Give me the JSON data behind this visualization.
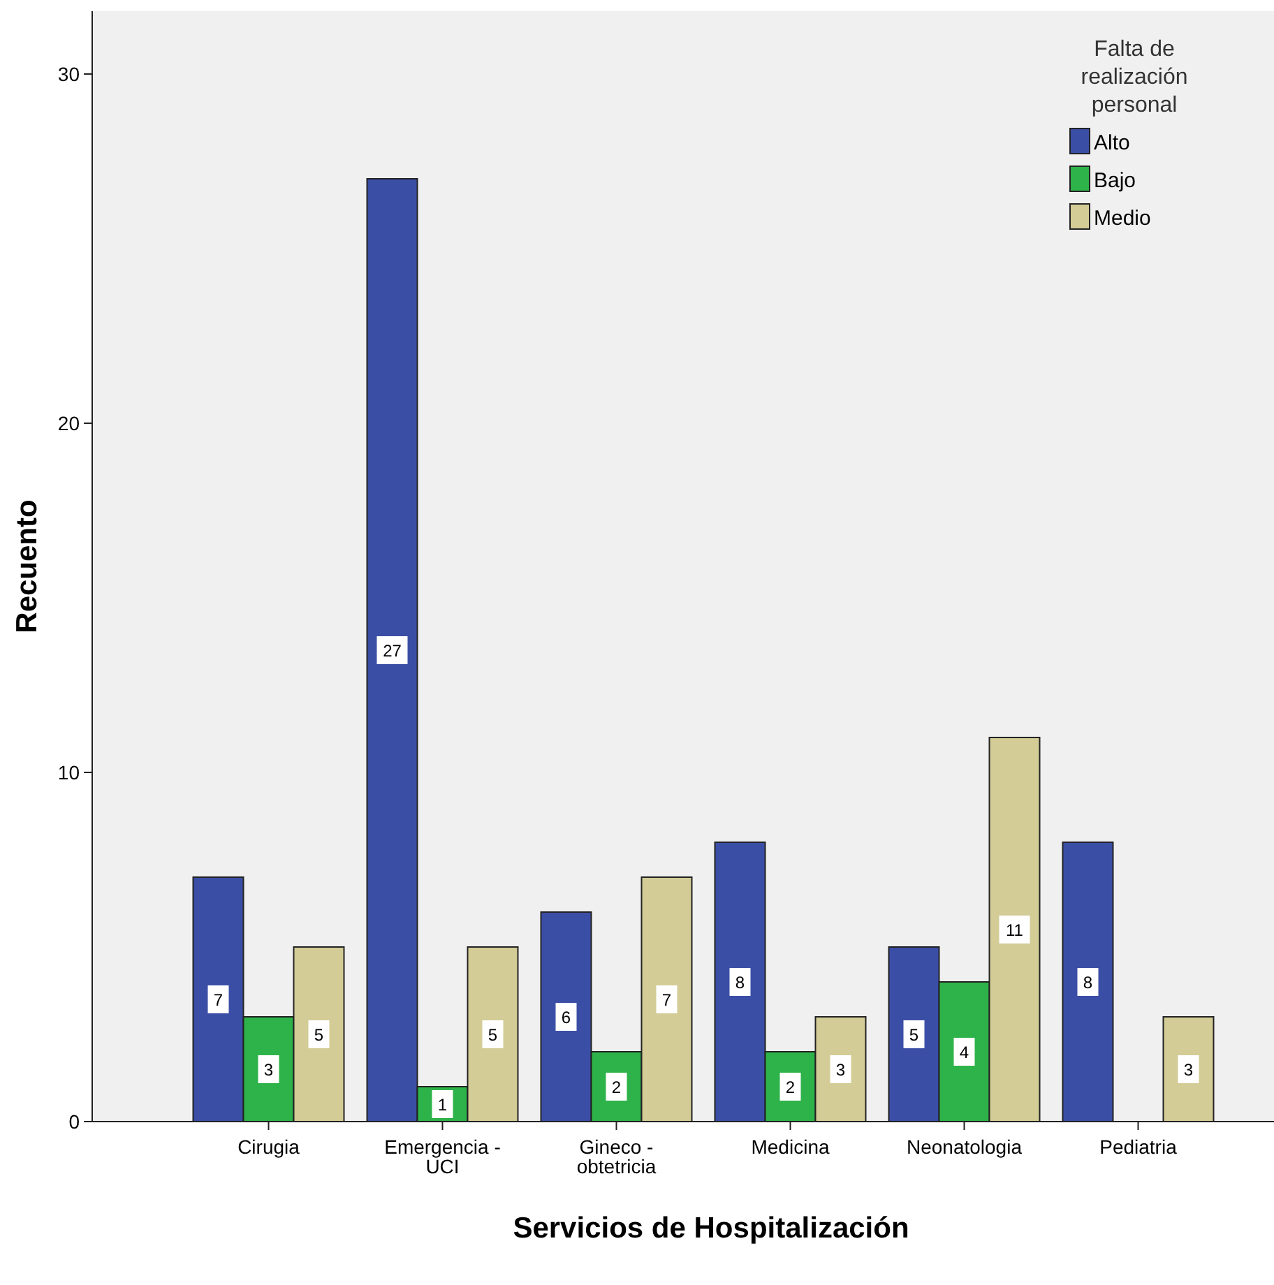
{
  "chart_data": {
    "type": "bar",
    "xlabel": "Servicios de Hospitalización",
    "ylabel": "Recuento",
    "legend_title": "Falta de realización personal",
    "categories": [
      "Cirugia",
      "Emergencia - UCI",
      "Gineco - obtetricia",
      "Medicina",
      "Neonatologia",
      "Pediatria"
    ],
    "series": [
      {
        "name": "Alto",
        "color": "#3b4ea6",
        "values": [
          7,
          27,
          6,
          8,
          5,
          8
        ]
      },
      {
        "name": "Bajo",
        "color": "#2eb34a",
        "values": [
          3,
          1,
          2,
          2,
          4,
          null
        ]
      },
      {
        "name": "Medio",
        "color": "#d3cc96",
        "values": [
          5,
          5,
          7,
          3,
          11,
          3
        ]
      }
    ],
    "ylim": [
      0,
      31.8
    ],
    "yticks": [
      0,
      10,
      20,
      30
    ],
    "data_labels": true,
    "legend": "top right",
    "grid": false
  }
}
